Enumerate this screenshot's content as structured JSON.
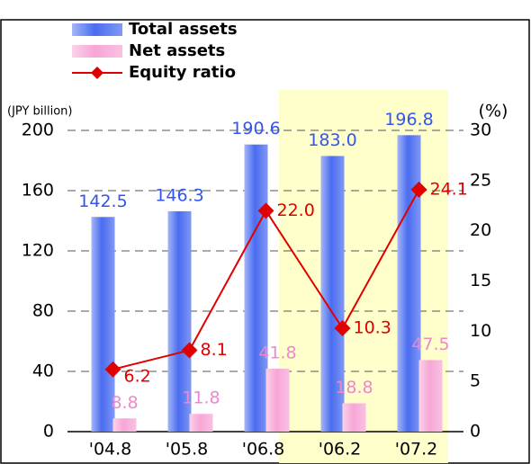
{
  "chart_data": {
    "type": "bar",
    "y_axis_label": "(JPY billion)",
    "y2_axis_label": "(%)",
    "categories": [
      "'04.8",
      "'05.8",
      "'06.8",
      "'06.2",
      "'07.2"
    ],
    "series": [
      {
        "name": "Total assets",
        "color": "#4a6cf0",
        "values": [
          142.5,
          146.3,
          190.6,
          183,
          196.8
        ],
        "value_labels": [
          "142.5",
          "146.3",
          "190.6",
          "183.0",
          "196.8"
        ]
      },
      {
        "name": "Net assets",
        "color": "#f7a6d6",
        "values": [
          8.8,
          11.8,
          41.8,
          18.8,
          47.5
        ]
      },
      {
        "name": "Equity ratio",
        "type": "line",
        "axis": "y2",
        "color": "#e00000",
        "values": [
          6.2,
          8.1,
          22,
          10.3,
          24.1
        ],
        "value_labels": [
          "6.2",
          "8.1",
          "22.0",
          "10.3",
          "24.1"
        ]
      }
    ],
    "ylim": [
      0,
      200
    ],
    "yticks": [
      0,
      40,
      80,
      120,
      160,
      200
    ],
    "y2lim": [
      0,
      30
    ],
    "y2ticks": [
      0,
      5,
      10,
      15,
      20,
      25,
      30
    ],
    "grid": true
  }
}
